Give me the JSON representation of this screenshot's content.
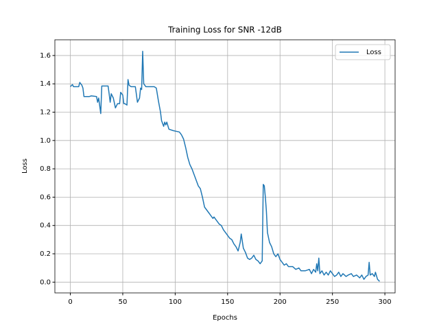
{
  "chart_data": {
    "type": "line",
    "title": "Training Loss for SNR -12dB",
    "xlabel": "Epochs",
    "ylabel": "Loss",
    "x": [
      0,
      2,
      3,
      5,
      8,
      9,
      11,
      12,
      13,
      18,
      20,
      25,
      26,
      27,
      29,
      30,
      36,
      37,
      38,
      39,
      41,
      43,
      45,
      47,
      48,
      50,
      51,
      52,
      54,
      55,
      56,
      58,
      62,
      64,
      66,
      67,
      68,
      69,
      70,
      72,
      80,
      82,
      84,
      86,
      87,
      88,
      89,
      90,
      91,
      92,
      94,
      98,
      104,
      106,
      108,
      110,
      112,
      114,
      116,
      118,
      120,
      122,
      124,
      126,
      128,
      130,
      132,
      134,
      136,
      137,
      140,
      142,
      144,
      146,
      148,
      150,
      152,
      154,
      156,
      158,
      160,
      162,
      163,
      165,
      167,
      169,
      171,
      173,
      175,
      177,
      179,
      181,
      183,
      184,
      185,
      186,
      187,
      188,
      190,
      192,
      194,
      196,
      198,
      200,
      202,
      204,
      206,
      208,
      212,
      215,
      218,
      220,
      224,
      228,
      230,
      232,
      234,
      235,
      236,
      237,
      238,
      240,
      242,
      244,
      246,
      248,
      250,
      252,
      254,
      256,
      258,
      260,
      263,
      265,
      268,
      270,
      273,
      276,
      278,
      280,
      282,
      284,
      285,
      286,
      288,
      290,
      291,
      293,
      295
    ],
    "series": [
      {
        "name": "Loss",
        "color": "#1f77b4",
        "values": [
          1.38,
          1.395,
          1.38,
          1.38,
          1.38,
          1.41,
          1.39,
          1.37,
          1.31,
          1.31,
          1.315,
          1.31,
          1.27,
          1.3,
          1.19,
          1.385,
          1.385,
          1.33,
          1.27,
          1.33,
          1.3,
          1.23,
          1.26,
          1.26,
          1.34,
          1.32,
          1.26,
          1.26,
          1.25,
          1.43,
          1.39,
          1.38,
          1.38,
          1.27,
          1.3,
          1.37,
          1.36,
          1.63,
          1.4,
          1.38,
          1.38,
          1.37,
          1.28,
          1.2,
          1.14,
          1.12,
          1.1,
          1.13,
          1.11,
          1.13,
          1.08,
          1.07,
          1.06,
          1.04,
          1.01,
          0.95,
          0.88,
          0.83,
          0.8,
          0.76,
          0.72,
          0.68,
          0.66,
          0.6,
          0.53,
          0.51,
          0.49,
          0.47,
          0.45,
          0.46,
          0.43,
          0.41,
          0.4,
          0.37,
          0.35,
          0.33,
          0.31,
          0.3,
          0.27,
          0.25,
          0.22,
          0.28,
          0.34,
          0.24,
          0.21,
          0.17,
          0.16,
          0.17,
          0.19,
          0.16,
          0.15,
          0.13,
          0.15,
          0.69,
          0.68,
          0.6,
          0.5,
          0.35,
          0.28,
          0.25,
          0.2,
          0.18,
          0.2,
          0.16,
          0.14,
          0.12,
          0.13,
          0.11,
          0.11,
          0.09,
          0.1,
          0.08,
          0.08,
          0.09,
          0.06,
          0.09,
          0.07,
          0.13,
          0.08,
          0.17,
          0.06,
          0.08,
          0.05,
          0.07,
          0.05,
          0.08,
          0.06,
          0.04,
          0.05,
          0.07,
          0.04,
          0.06,
          0.04,
          0.05,
          0.06,
          0.04,
          0.05,
          0.03,
          0.05,
          0.02,
          0.04,
          0.05,
          0.14,
          0.05,
          0.06,
          0.04,
          0.07,
          0.02,
          0.005
        ]
      }
    ],
    "xlim": [
      -14.75,
      309.75
    ],
    "xticks": [
      0,
      50,
      100,
      150,
      200,
      250,
      300
    ],
    "ylim": [
      -0.076,
      1.711
    ],
    "yticks": [
      {
        "value": 0,
        "label": "0.0"
      },
      0.2,
      0.4,
      0.6,
      0.8,
      {
        "value": 1,
        "label": "1.0"
      },
      1.2,
      1.4,
      1.6
    ],
    "grid": true,
    "legend": "upper right"
  }
}
